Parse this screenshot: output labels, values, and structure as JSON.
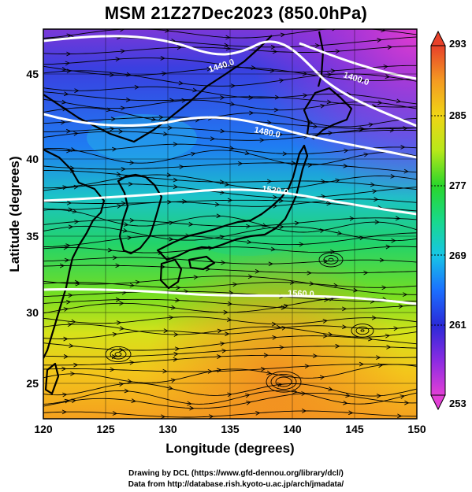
{
  "title": "MSM 21Z27Dec2023 (850.0hPa)",
  "axes": {
    "xlabel": "Longitude (degrees)",
    "ylabel": "Latitude  (degrees)",
    "xticks": [
      "120",
      "125",
      "130",
      "135",
      "140",
      "145",
      "150"
    ],
    "yticks": [
      "25",
      "30",
      "35",
      "40",
      "45"
    ],
    "lon_range": [
      120,
      150
    ],
    "lat_range": [
      22.4,
      47.6
    ]
  },
  "colorbar": {
    "ticks": [
      "293",
      "285",
      "277",
      "269",
      "261",
      "253"
    ],
    "range": [
      253,
      293
    ],
    "colors": [
      "#e23fd6",
      "#8a2be2",
      "#2a2ad8",
      "#1b6fff",
      "#17c6e6",
      "#18d98a",
      "#2ad62a",
      "#b7e81a",
      "#f0d515",
      "#f49a22",
      "#e8412a"
    ]
  },
  "contour_labels": [
    "1440.0",
    "1400.0",
    "1480.0",
    "1520.0",
    "1560.0"
  ],
  "credits": {
    "line1": "Drawing by DCL (https://www.gfd-dennou.org/library/dcl/)",
    "line2": "Data from http://database.rish.kyoto-u.ac.jp/arch/jmadata/"
  }
}
